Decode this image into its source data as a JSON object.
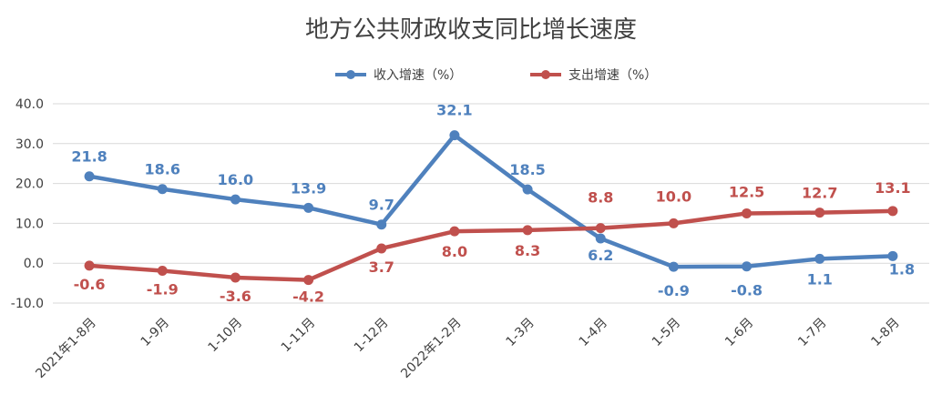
{
  "chart_data": {
    "type": "line",
    "title": "地方公共财政收支同比增长速度",
    "categories": [
      "2021年1-8月",
      "1-9月",
      "1-10月",
      "1-11月",
      "1-12月",
      "2022年1-2月",
      "1-3月",
      "1-4月",
      "1-5月",
      "1-6月",
      "1-7月",
      "1-8月"
    ],
    "series": [
      {
        "name": "收入增速（%）",
        "color": "#4f81bd",
        "values": [
          21.8,
          18.6,
          16.0,
          13.9,
          9.7,
          32.1,
          18.5,
          6.2,
          -0.9,
          -0.8,
          1.1,
          1.8
        ],
        "labels": [
          "21.8",
          "18.6",
          "16.0",
          "13.9",
          "9.7",
          "32.1",
          "18.5",
          "6.2",
          "-0.9",
          "-0.8",
          "1.1",
          "1.8"
        ]
      },
      {
        "name": "支出增速（%）",
        "color": "#c0504d",
        "values": [
          -0.6,
          -1.9,
          -3.6,
          -4.2,
          3.7,
          8.0,
          8.3,
          8.8,
          10.0,
          12.5,
          12.7,
          13.1
        ],
        "labels": [
          "-0.6",
          "-1.9",
          "-3.6",
          "-4.2",
          "3.7",
          "8.0",
          "8.3",
          "8.8",
          "10.0",
          "12.5",
          "12.7",
          "13.1"
        ]
      }
    ],
    "yticks": [
      "40.0",
      "30.0",
      "20.0",
      "10.0",
      "0.0",
      "-10.0"
    ],
    "ylim": [
      -10,
      40
    ],
    "grid": true,
    "legend_position": "top-center",
    "xlabel": "",
    "ylabel": ""
  }
}
